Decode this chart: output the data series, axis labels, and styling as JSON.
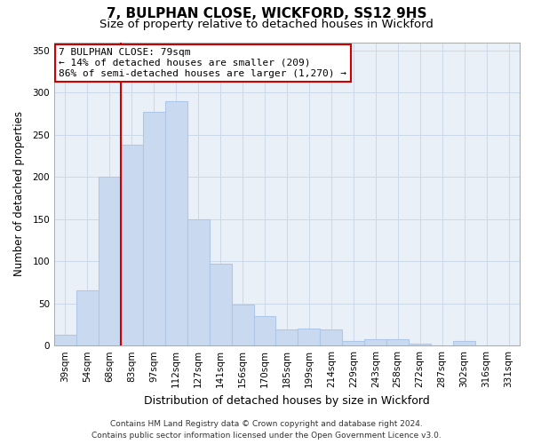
{
  "title": "7, BULPHAN CLOSE, WICKFORD, SS12 9HS",
  "subtitle": "Size of property relative to detached houses in Wickford",
  "xlabel": "Distribution of detached houses by size in Wickford",
  "ylabel": "Number of detached properties",
  "bar_labels": [
    "39sqm",
    "54sqm",
    "68sqm",
    "83sqm",
    "97sqm",
    "112sqm",
    "127sqm",
    "141sqm",
    "156sqm",
    "170sqm",
    "185sqm",
    "199sqm",
    "214sqm",
    "229sqm",
    "243sqm",
    "258sqm",
    "272sqm",
    "287sqm",
    "302sqm",
    "316sqm",
    "331sqm"
  ],
  "bar_values": [
    13,
    65,
    200,
    238,
    277,
    290,
    150,
    97,
    49,
    35,
    19,
    20,
    19,
    5,
    8,
    8,
    2,
    0,
    5,
    0,
    0
  ],
  "bar_color": "#c9daf0",
  "bar_edge_color": "#aec6e8",
  "vline_color": "#cc0000",
  "annotation_line1": "7 BULPHAN CLOSE: 79sqm",
  "annotation_line2": "← 14% of detached houses are smaller (209)",
  "annotation_line3": "86% of semi-detached houses are larger (1,270) →",
  "annotation_box_color": "#ffffff",
  "annotation_box_edge": "#cc0000",
  "ylim": [
    0,
    360
  ],
  "yticks": [
    0,
    50,
    100,
    150,
    200,
    250,
    300,
    350
  ],
  "footer_line1": "Contains HM Land Registry data © Crown copyright and database right 2024.",
  "footer_line2": "Contains public sector information licensed under the Open Government Licence v3.0.",
  "title_fontsize": 11,
  "subtitle_fontsize": 9.5,
  "xlabel_fontsize": 9,
  "ylabel_fontsize": 8.5,
  "tick_fontsize": 7.5,
  "footer_fontsize": 6.5,
  "annotation_fontsize": 8,
  "grid_color": "#ccd9e8",
  "background_color": "#eaf0f8"
}
